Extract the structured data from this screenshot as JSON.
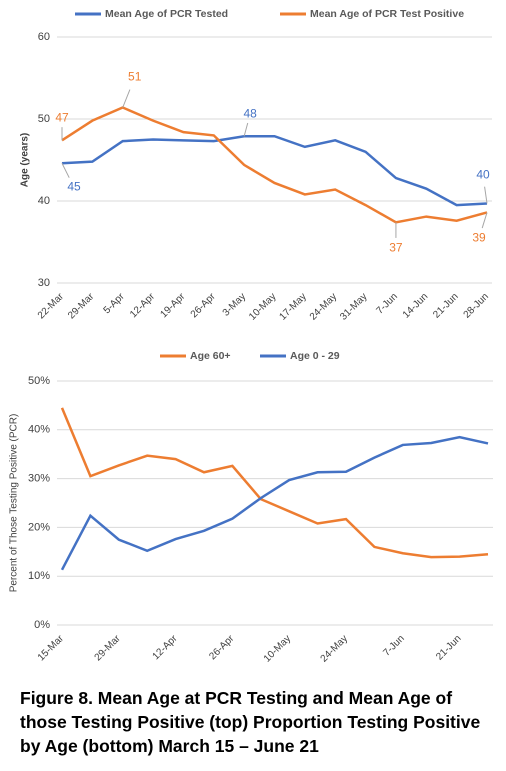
{
  "chart_data": [
    {
      "type": "line",
      "categories": [
        "22-Mar",
        "29-Mar",
        "5-Apr",
        "12-Apr",
        "19-Apr",
        "26-Apr",
        "3-May",
        "10-May",
        "17-May",
        "24-May",
        "31-May",
        "7-Jun",
        "14-Jun",
        "21-Jun",
        "28-Jun"
      ],
      "y_label": "Age (years)",
      "ylim": [
        30,
        60
      ],
      "yticks": [
        30,
        40,
        50,
        60
      ],
      "grid": true,
      "series": [
        {
          "name": "Mean Age of PCR Tested",
          "color": "#4472c4",
          "values": [
            44.6,
            44.8,
            47.3,
            47.5,
            47.4,
            47.3,
            47.9,
            47.9,
            46.6,
            47.4,
            46.0,
            42.8,
            41.5,
            39.5,
            39.7
          ],
          "value_labels": [
            "45",
            null,
            null,
            null,
            null,
            null,
            "48",
            null,
            null,
            null,
            null,
            null,
            null,
            null,
            "40"
          ]
        },
        {
          "name": "Mean Age of PCR Test Positive",
          "color": "#ed7d31",
          "values": [
            47.4,
            49.8,
            51.4,
            49.8,
            48.4,
            48.0,
            44.4,
            42.2,
            40.8,
            41.4,
            39.5,
            37.4,
            38.1,
            37.6,
            38.6
          ],
          "value_labels": [
            "47",
            null,
            "51",
            null,
            null,
            null,
            null,
            null,
            null,
            null,
            null,
            "37",
            null,
            null,
            "39"
          ]
        }
      ]
    },
    {
      "type": "line",
      "categories": [
        "15-Mar",
        null,
        "29-Mar",
        null,
        "12-Apr",
        null,
        "26-Apr",
        null,
        "10-May",
        null,
        "24-May",
        null,
        "7-Jun",
        null,
        "21-Jun",
        null
      ],
      "y_label": "Percent of Those Testing Positive (PCR)",
      "ylim": [
        0,
        50
      ],
      "yticks": [
        {
          "value": 0,
          "label": "0%"
        },
        {
          "value": 10,
          "label": "10%"
        },
        {
          "value": 20,
          "label": "20%"
        },
        {
          "value": 30,
          "label": "30%"
        },
        {
          "value": 40,
          "label": "40%"
        },
        {
          "value": 50,
          "label": "50%"
        }
      ],
      "grid": true,
      "series": [
        {
          "name": "Age 60+",
          "color": "#ed7d31",
          "values": [
            44.5,
            30.5,
            32.7,
            34.7,
            34.0,
            31.3,
            32.6,
            25.8,
            23.3,
            20.8,
            21.7,
            16.0,
            14.7,
            13.9,
            14.0,
            14.5
          ]
        },
        {
          "name": "Age 0 - 29",
          "color": "#4472c4",
          "values": [
            11.3,
            22.4,
            17.5,
            15.2,
            17.6,
            19.3,
            21.8,
            26.0,
            29.7,
            31.3,
            31.4,
            34.3,
            36.9,
            37.3,
            38.5,
            37.2
          ]
        }
      ]
    }
  ],
  "caption": "Figure 8. Mean Age at PCR Testing and Mean Age of those Testing Positive (top) Proportion Testing Positive by Age (bottom) March 15 – June 21"
}
